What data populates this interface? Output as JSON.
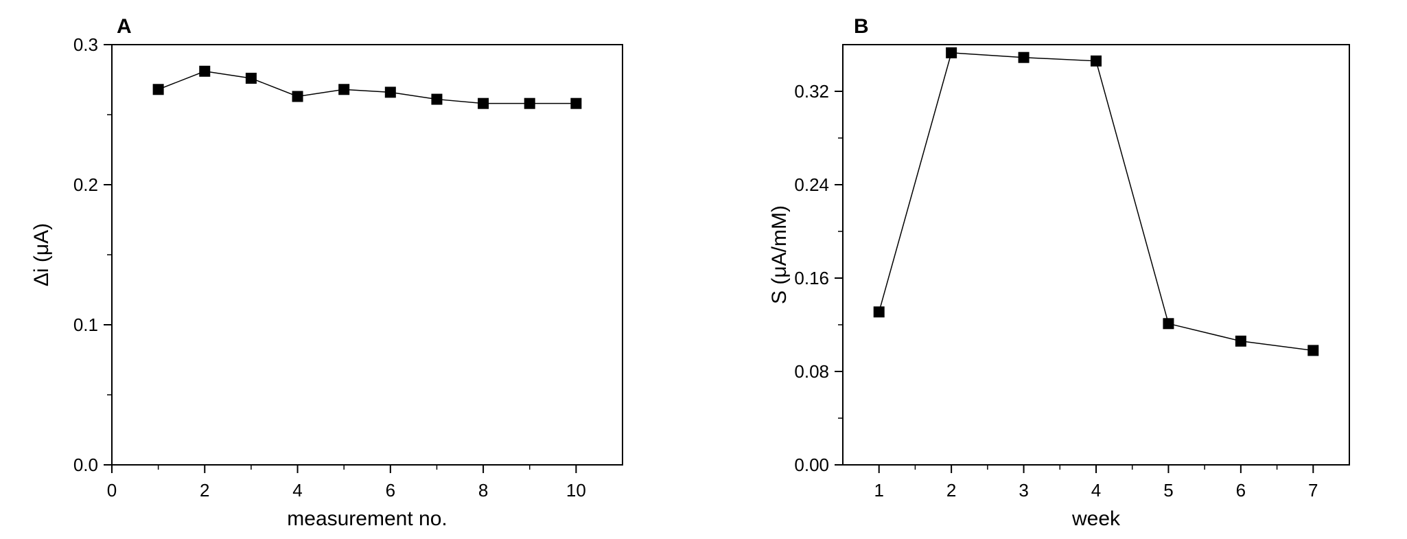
{
  "chart_data": [
    {
      "panel": "A",
      "type": "line",
      "xlabel": "measurement no.",
      "ylabel": "Δi (μA)",
      "xlim": [
        0,
        11
      ],
      "ylim": [
        0,
        0.3
      ],
      "x_ticks": [
        "0",
        "2",
        "4",
        "6",
        "8",
        "10"
      ],
      "x_tick_values": [
        0,
        2,
        4,
        6,
        8,
        10
      ],
      "y_ticks": [
        "0.0",
        "0.1",
        "0.2",
        "0.3"
      ],
      "y_tick_values": [
        0,
        0.1,
        0.2,
        0.3
      ],
      "marker": "square",
      "series": [
        {
          "x": [
            1,
            2,
            3,
            4,
            5,
            6,
            7,
            8,
            9,
            10
          ],
          "y": [
            0.268,
            0.281,
            0.276,
            0.263,
            0.268,
            0.266,
            0.261,
            0.258,
            0.258,
            0.258
          ]
        }
      ],
      "grid": false
    },
    {
      "panel": "B",
      "type": "line",
      "xlabel": "week",
      "ylabel": "S (μA/mM)",
      "xlim": [
        0.5,
        7.5
      ],
      "ylim": [
        0,
        0.36
      ],
      "x_ticks": [
        "1",
        "2",
        "3",
        "4",
        "5",
        "6",
        "7"
      ],
      "x_tick_values": [
        1,
        2,
        3,
        4,
        5,
        6,
        7
      ],
      "y_ticks": [
        "0.00",
        "0.08",
        "0.16",
        "0.24",
        "0.32"
      ],
      "y_tick_values": [
        0,
        0.08,
        0.16,
        0.24,
        0.32
      ],
      "marker": "square",
      "series": [
        {
          "x": [
            1,
            2,
            3,
            4,
            5,
            6,
            7
          ],
          "y": [
            0.131,
            0.353,
            0.349,
            0.346,
            0.121,
            0.106,
            0.098
          ]
        }
      ],
      "grid": false
    }
  ]
}
